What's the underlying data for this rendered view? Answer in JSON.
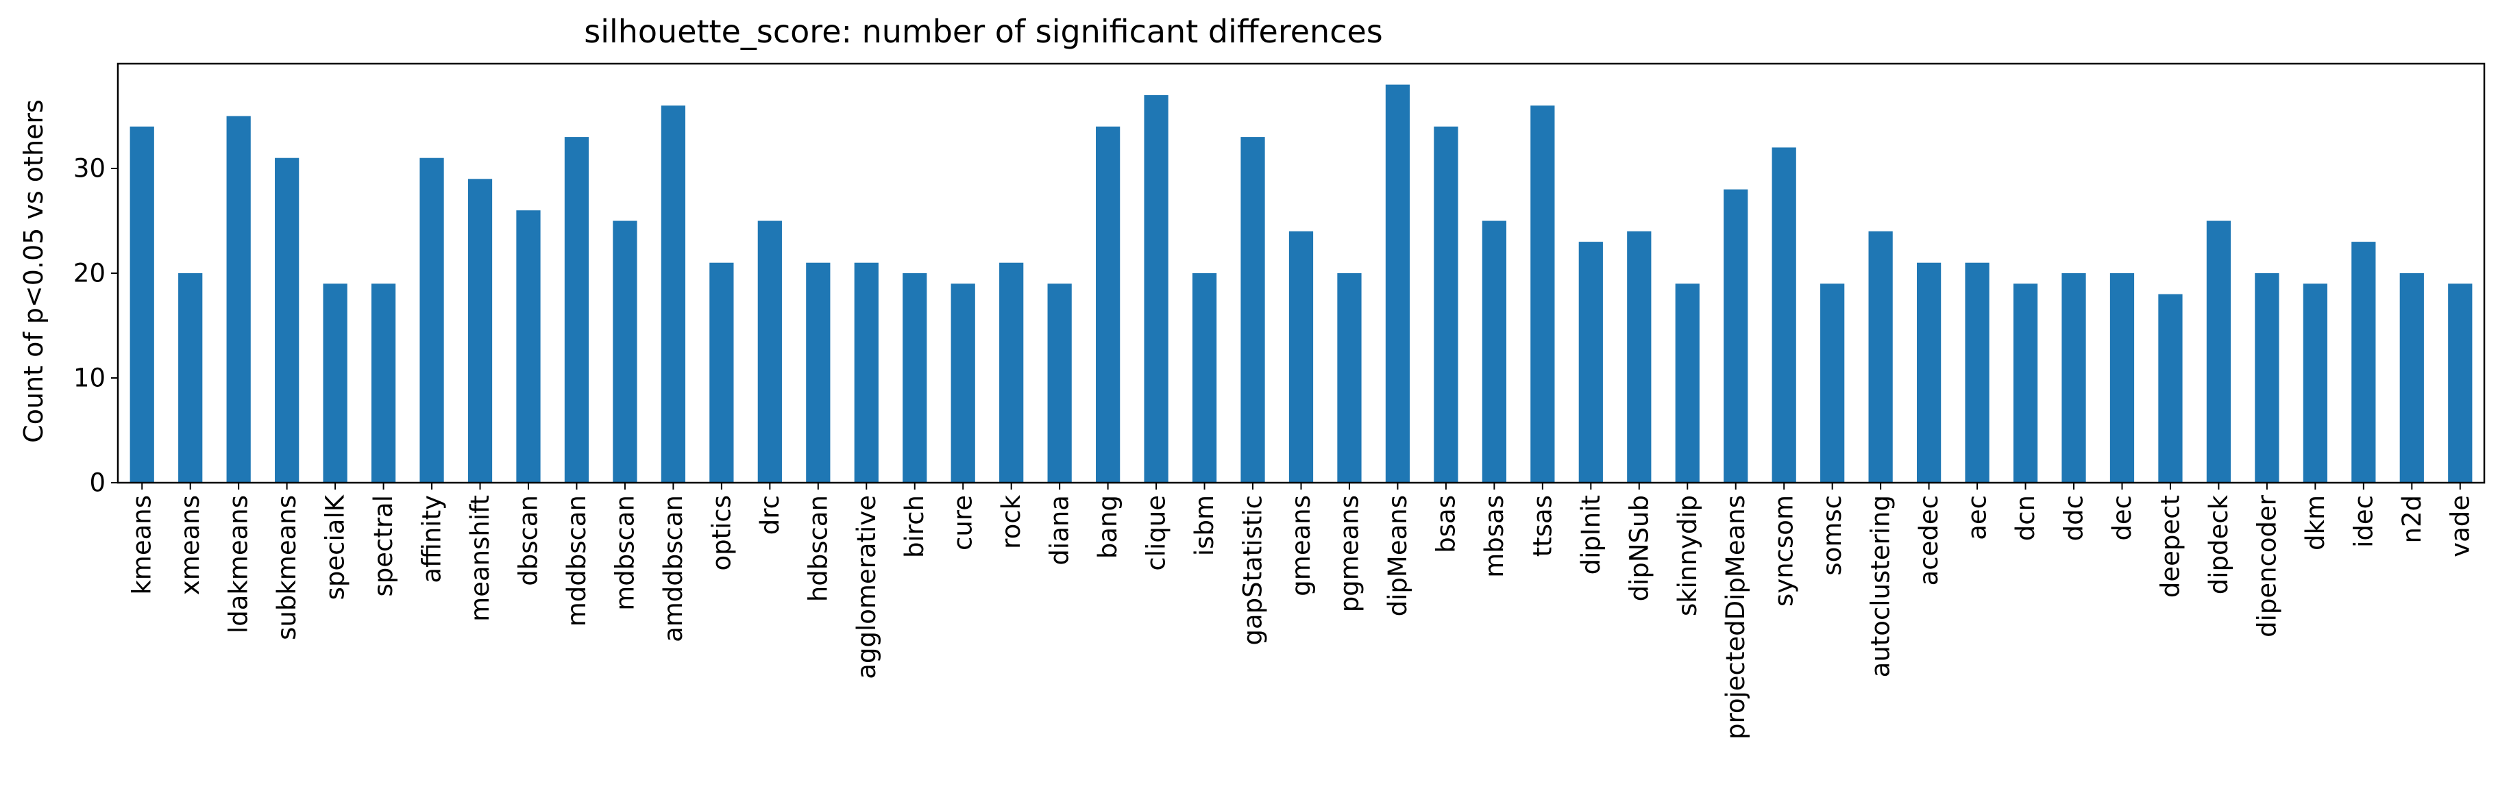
{
  "chart_data": {
    "type": "bar",
    "title": "silhouette_score: number of significant differences",
    "xlabel": "",
    "ylabel": "Count of p<0.05 vs others",
    "ylim": [
      0,
      40
    ],
    "yticks": [
      0,
      10,
      20,
      30
    ],
    "grid": false,
    "bar_color": "#1f77b4",
    "categories": [
      "kmeans",
      "xmeans",
      "ldakmeans",
      "subkmeans",
      "specialK",
      "spectral",
      "affinity",
      "meanshift",
      "dbscan",
      "mddbscan",
      "mdbscan",
      "amddbscan",
      "optics",
      "drc",
      "hdbscan",
      "agglomerative",
      "birch",
      "cure",
      "rock",
      "diana",
      "bang",
      "clique",
      "isbm",
      "gapStatistic",
      "gmeans",
      "pgmeans",
      "dipMeans",
      "bsas",
      "mbsas",
      "ttsas",
      "dipInit",
      "dipNSub",
      "skinnydip",
      "projectedDipMeans",
      "syncsom",
      "somsc",
      "autoclustering",
      "acedec",
      "aec",
      "dcn",
      "ddc",
      "dec",
      "deepect",
      "dipdeck",
      "dipencoder",
      "dkm",
      "idec",
      "n2d",
      "vade"
    ],
    "values": [
      34,
      20,
      35,
      31,
      19,
      19,
      31,
      29,
      26,
      33,
      25,
      36,
      21,
      25,
      21,
      21,
      20,
      19,
      21,
      19,
      34,
      37,
      20,
      33,
      24,
      20,
      38,
      34,
      25,
      36,
      23,
      24,
      19,
      28,
      32,
      19,
      24,
      21,
      21,
      19,
      20,
      20,
      18,
      25,
      20,
      19,
      23,
      20,
      19
    ]
  }
}
